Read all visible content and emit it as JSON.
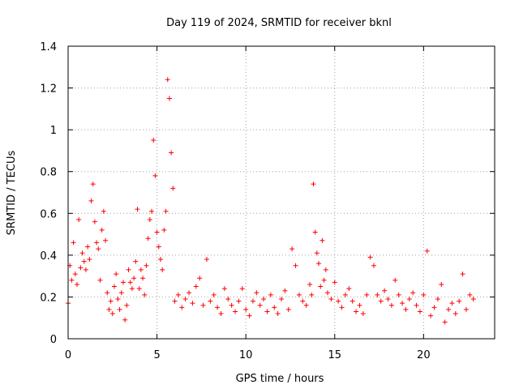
{
  "chart_data": {
    "type": "scatter",
    "title": "Day 119 of 2024, SRMTID for receiver bknl",
    "xlabel": "GPS time / hours",
    "ylabel": "SRMTID / TECUs",
    "xlim": [
      0,
      24
    ],
    "ylim": [
      0,
      1.4
    ],
    "xticks": [
      0,
      5,
      10,
      15,
      20
    ],
    "xtick_labels": [
      "0",
      "5",
      "10",
      "15",
      "20"
    ],
    "yticks": [
      0,
      0.2,
      0.4,
      0.6,
      0.8,
      1.0,
      1.2,
      1.4
    ],
    "ytick_labels": [
      "0",
      "0.2",
      "0.4",
      "0.6",
      "0.8",
      "1",
      "1.2",
      "1.4"
    ],
    "grid": true,
    "marker": "plus",
    "color": "#ff0000",
    "series": [
      {
        "name": "SRMTID",
        "x": [
          0.0,
          0.1,
          0.2,
          0.3,
          0.4,
          0.5,
          0.6,
          0.7,
          0.8,
          0.9,
          1.0,
          1.1,
          1.2,
          1.3,
          1.4,
          1.5,
          1.6,
          1.7,
          1.8,
          1.9,
          2.0,
          2.1,
          2.2,
          2.3,
          2.4,
          2.5,
          2.6,
          2.7,
          2.8,
          2.9,
          3.0,
          3.1,
          3.2,
          3.3,
          3.4,
          3.5,
          3.6,
          3.7,
          3.8,
          3.9,
          4.0,
          4.1,
          4.2,
          4.3,
          4.4,
          4.5,
          4.6,
          4.7,
          4.8,
          4.9,
          5.0,
          5.1,
          5.2,
          5.3,
          5.4,
          5.5,
          5.6,
          5.7,
          5.8,
          5.9,
          6.0,
          6.2,
          6.4,
          6.6,
          6.8,
          7.0,
          7.2,
          7.4,
          7.6,
          7.8,
          8.0,
          8.2,
          8.4,
          8.6,
          8.8,
          9.0,
          9.2,
          9.4,
          9.6,
          9.8,
          10.0,
          10.2,
          10.4,
          10.6,
          10.8,
          11.0,
          11.2,
          11.4,
          11.6,
          11.8,
          12.0,
          12.2,
          12.4,
          12.6,
          12.8,
          13.0,
          13.2,
          13.4,
          13.6,
          13.7,
          13.8,
          13.9,
          14.0,
          14.1,
          14.2,
          14.3,
          14.4,
          14.5,
          14.6,
          14.8,
          15.0,
          15.2,
          15.4,
          15.6,
          15.8,
          16.0,
          16.2,
          16.4,
          16.6,
          16.8,
          17.0,
          17.2,
          17.4,
          17.6,
          17.8,
          18.0,
          18.2,
          18.4,
          18.6,
          18.8,
          19.0,
          19.2,
          19.4,
          19.6,
          19.8,
          20.0,
          20.2,
          20.4,
          20.6,
          20.8,
          21.0,
          21.2,
          21.4,
          21.6,
          21.8,
          22.0,
          22.2,
          22.4,
          22.6,
          22.8
        ],
        "y": [
          0.17,
          0.35,
          0.28,
          0.46,
          0.31,
          0.26,
          0.57,
          0.34,
          0.41,
          0.37,
          0.33,
          0.44,
          0.38,
          0.66,
          0.74,
          0.56,
          0.46,
          0.43,
          0.28,
          0.52,
          0.61,
          0.47,
          0.22,
          0.14,
          0.18,
          0.12,
          0.25,
          0.31,
          0.19,
          0.14,
          0.22,
          0.27,
          0.09,
          0.16,
          0.33,
          0.27,
          0.24,
          0.29,
          0.37,
          0.62,
          0.24,
          0.33,
          0.29,
          0.21,
          0.35,
          0.48,
          0.57,
          0.61,
          0.95,
          0.78,
          0.51,
          0.44,
          0.38,
          0.33,
          0.52,
          0.61,
          1.24,
          1.15,
          0.89,
          0.72,
          0.18,
          0.21,
          0.15,
          0.19,
          0.22,
          0.17,
          0.25,
          0.29,
          0.16,
          0.38,
          0.18,
          0.21,
          0.15,
          0.12,
          0.24,
          0.19,
          0.16,
          0.13,
          0.18,
          0.24,
          0.14,
          0.11,
          0.18,
          0.22,
          0.16,
          0.19,
          0.13,
          0.21,
          0.15,
          0.12,
          0.19,
          0.23,
          0.14,
          0.43,
          0.35,
          0.21,
          0.18,
          0.16,
          0.26,
          0.21,
          0.74,
          0.51,
          0.41,
          0.36,
          0.25,
          0.47,
          0.28,
          0.33,
          0.22,
          0.19,
          0.27,
          0.18,
          0.15,
          0.21,
          0.24,
          0.18,
          0.13,
          0.16,
          0.12,
          0.21,
          0.39,
          0.35,
          0.21,
          0.18,
          0.23,
          0.19,
          0.16,
          0.28,
          0.21,
          0.17,
          0.14,
          0.19,
          0.22,
          0.16,
          0.13,
          0.21,
          0.42,
          0.11,
          0.15,
          0.19,
          0.26,
          0.08,
          0.14,
          0.17,
          0.12,
          0.18,
          0.31,
          0.14,
          0.21,
          0.19
        ]
      }
    ]
  }
}
